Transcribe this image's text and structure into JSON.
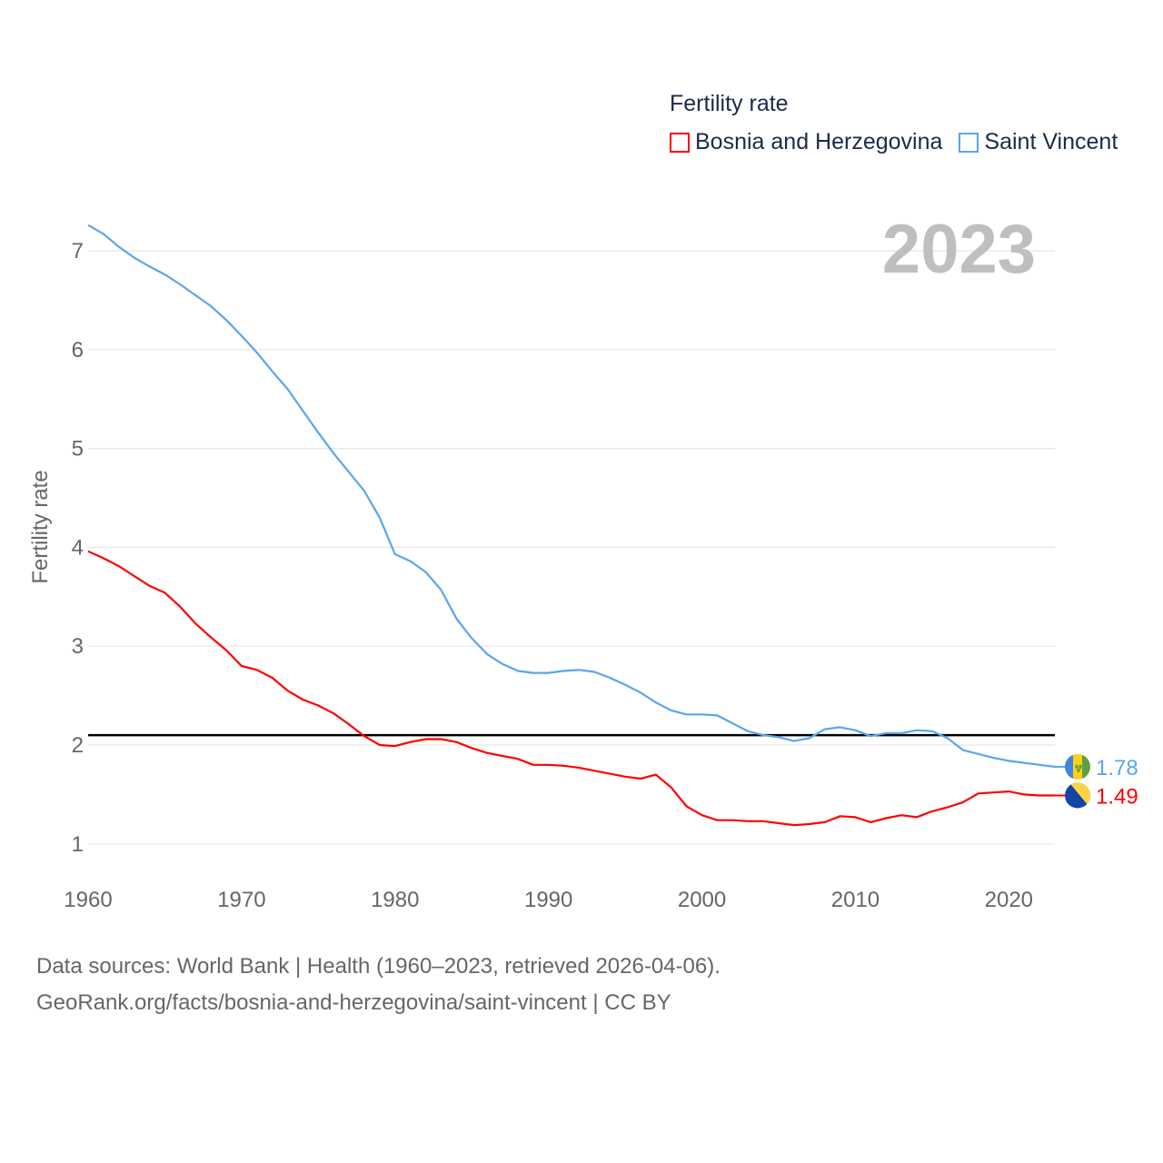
{
  "legend": {
    "title": "Fertility rate",
    "items": [
      {
        "label": "Bosnia and Herzegovina",
        "color": "#ff0000"
      },
      {
        "label": "Saint Vincent",
        "color": "#5aa5ee"
      }
    ]
  },
  "year_label": "2023",
  "source": {
    "line1": "Data sources: World Bank | Health (1960–2023, retrieved 2026-04-06).",
    "line2": "GeoRank.org/facts/bosnia-and-herzegovina/saint-vincent | CC BY"
  },
  "chart_data": {
    "type": "line",
    "title": "Fertility rate",
    "xlabel": "",
    "ylabel": "Fertility rate",
    "xlim": [
      1960,
      2023
    ],
    "ylim": [
      0.7,
      7.4
    ],
    "yticks": [
      1,
      2,
      3,
      4,
      5,
      6,
      7
    ],
    "xticks": [
      1960,
      1970,
      1980,
      1990,
      2000,
      2010,
      2020
    ],
    "grid": true,
    "legend_position": "top-right",
    "reference_line": {
      "value": 2.1,
      "color": "#000000"
    },
    "x_start": 1960,
    "series": [
      {
        "name": "Bosnia and Herzegovina",
        "color": "#ff0000",
        "end_label": "1.49",
        "values": [
          3.96,
          3.89,
          3.81,
          3.71,
          3.61,
          3.54,
          3.4,
          3.23,
          3.09,
          2.96,
          2.8,
          2.76,
          2.68,
          2.55,
          2.46,
          2.4,
          2.32,
          2.21,
          2.09,
          2.0,
          1.99,
          2.03,
          2.06,
          2.06,
          2.03,
          1.97,
          1.92,
          1.89,
          1.86,
          1.8,
          1.8,
          1.79,
          1.77,
          1.74,
          1.71,
          1.68,
          1.66,
          1.7,
          1.57,
          1.38,
          1.29,
          1.24,
          1.24,
          1.23,
          1.23,
          1.21,
          1.19,
          1.2,
          1.22,
          1.28,
          1.27,
          1.22,
          1.26,
          1.29,
          1.27,
          1.33,
          1.37,
          1.42,
          1.51,
          1.52,
          1.53,
          1.5,
          1.49,
          1.49
        ]
      },
      {
        "name": "Saint Vincent",
        "color": "#5aa5ee",
        "end_label": "1.78",
        "values": [
          7.26,
          7.17,
          7.04,
          6.93,
          6.84,
          6.76,
          6.66,
          6.55,
          6.44,
          6.3,
          6.14,
          5.97,
          5.78,
          5.6,
          5.38,
          5.16,
          4.95,
          4.76,
          4.57,
          4.3,
          3.93,
          3.86,
          3.75,
          3.57,
          3.28,
          3.08,
          2.92,
          2.82,
          2.75,
          2.73,
          2.73,
          2.75,
          2.76,
          2.74,
          2.68,
          2.61,
          2.53,
          2.43,
          2.35,
          2.31,
          2.31,
          2.3,
          2.22,
          2.14,
          2.1,
          2.08,
          2.04,
          2.07,
          2.16,
          2.18,
          2.15,
          2.09,
          2.12,
          2.12,
          2.15,
          2.14,
          2.07,
          1.95,
          1.91,
          1.87,
          1.84,
          1.82,
          1.8,
          1.78
        ]
      }
    ]
  }
}
